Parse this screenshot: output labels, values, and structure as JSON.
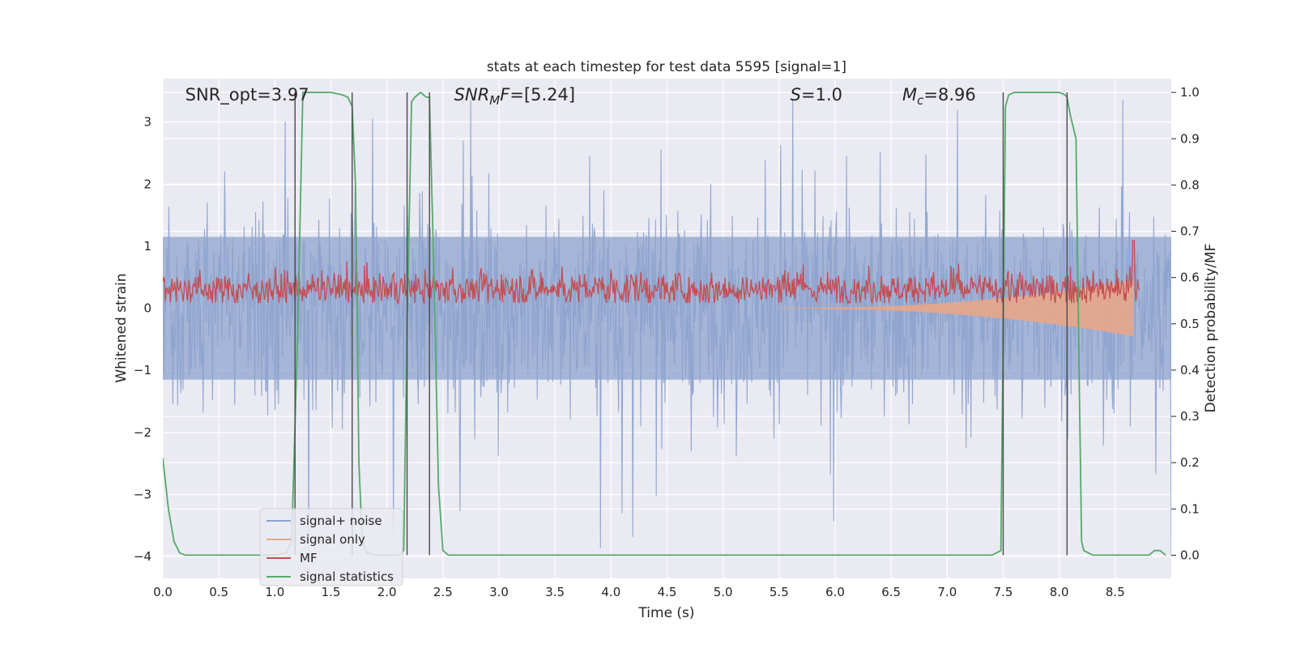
{
  "chart_data": {
    "type": "line",
    "title": "stats at each timestep for test data 5595 [signal=1]",
    "xlabel": "Time (s)",
    "ylabel": "Whitened strain",
    "ylabel_right": "Detection probability/MF",
    "xlim": [
      0,
      9.0
    ],
    "ylim": [
      -4.35,
      3.7
    ],
    "ylim_right": [
      -0.05,
      1.03
    ],
    "x_ticks": [
      0.0,
      0.5,
      1.0,
      1.5,
      2.0,
      2.5,
      3.0,
      3.5,
      4.0,
      4.5,
      5.0,
      5.5,
      6.0,
      6.5,
      7.0,
      7.5,
      8.0,
      8.5
    ],
    "x_tick_labels": [
      "0.0",
      "0.5",
      "1.0",
      "1.5",
      "2.0",
      "2.5",
      "3.0",
      "3.5",
      "4.0",
      "4.5",
      "5.0",
      "5.5",
      "6.0",
      "6.5",
      "7.0",
      "7.5",
      "8.0",
      "8.5"
    ],
    "y_ticks": [
      3,
      2,
      1,
      0,
      -1,
      -2,
      -3,
      -4
    ],
    "y_tick_labels": [
      "3",
      "2",
      "1",
      "0",
      "−1",
      "−2",
      "−3",
      "−4"
    ],
    "y_ticks_right": [
      1.0,
      0.9,
      0.8,
      0.7,
      0.6,
      0.5,
      0.4,
      0.3,
      0.2,
      0.1,
      0.0
    ],
    "y_tick_labels_right": [
      "1.0",
      "0.9",
      "0.8",
      "0.7",
      "0.6",
      "0.5",
      "0.4",
      "0.3",
      "0.2",
      "0.1",
      "0.0"
    ],
    "annotations": [
      {
        "id": "snr-opt",
        "text": "SNR_opt=3.97",
        "italic_prefix": "",
        "x": 0.2
      },
      {
        "id": "snr-mf",
        "text": "=[5.24]",
        "italic_prefix": "SNR",
        "sub": "M",
        "italic_suffix": "F",
        "x": 2.6
      },
      {
        "id": "s-value",
        "text": "=1.0",
        "italic_prefix": "S",
        "x": 5.6
      },
      {
        "id": "mc-value",
        "text": "=8.96",
        "italic_prefix": "M",
        "sub": "c",
        "x": 6.6
      }
    ],
    "vertical_lines": [
      1.18,
      1.69,
      2.18,
      2.38,
      7.5,
      8.07
    ],
    "series": [
      {
        "name": "signal+ noise",
        "color": "#8da3cd",
        "axis": "left",
        "kind": "noise-band",
        "typical_half_width": 1.15,
        "peak_range": [
          -4.0,
          3.35
        ]
      },
      {
        "name": "signal only",
        "color": "#e8a68a",
        "axis": "left",
        "kind": "chirp",
        "start": 5.5,
        "end": 8.66,
        "end_amplitude": 0.45
      },
      {
        "name": "MF",
        "color": "#c44e52",
        "axis": "right",
        "kind": "noisy",
        "baseline": 0.575,
        "band": [
          0.55,
          0.605
        ],
        "max_peak": 0.68
      },
      {
        "name": "signal statistics",
        "color": "#55a868",
        "axis": "right",
        "kind": "line",
        "x": [
          0.0,
          0.05,
          0.1,
          0.15,
          0.2,
          0.3,
          0.5,
          0.8,
          1.0,
          1.1,
          1.15,
          1.2,
          1.25,
          1.3,
          1.4,
          1.5,
          1.6,
          1.65,
          1.69,
          1.72,
          1.75,
          1.78,
          1.82,
          1.9,
          2.0,
          2.1,
          2.15,
          2.18,
          2.22,
          2.25,
          2.3,
          2.35,
          2.38,
          2.42,
          2.46,
          2.5,
          2.55,
          2.6,
          3.0,
          4.0,
          5.0,
          6.0,
          7.0,
          7.4,
          7.48,
          7.52,
          7.55,
          7.6,
          7.7,
          7.9,
          8.0,
          8.05,
          8.07,
          8.1,
          8.15,
          8.18,
          8.2,
          8.22,
          8.3,
          8.5,
          8.7,
          8.8,
          8.85,
          8.9,
          8.95
        ],
        "y": [
          0.21,
          0.1,
          0.03,
          0.005,
          0.0,
          0.0,
          0.0,
          0.0,
          0.0,
          0.005,
          0.03,
          0.45,
          1.0,
          1.0,
          1.0,
          1.0,
          0.995,
          0.99,
          0.97,
          0.8,
          0.2,
          0.03,
          0.005,
          0.0,
          0.0,
          0.0,
          0.01,
          0.5,
          0.98,
          0.99,
          1.0,
          0.99,
          0.99,
          0.6,
          0.15,
          0.01,
          0.0,
          0.0,
          0.0,
          0.0,
          0.0,
          0.0,
          0.0,
          0.0,
          0.01,
          0.97,
          0.995,
          1.0,
          1.0,
          1.0,
          1.0,
          0.995,
          0.99,
          0.95,
          0.9,
          0.35,
          0.03,
          0.01,
          0.0,
          0.0,
          0.0,
          0.0,
          0.01,
          0.01,
          0.0
        ]
      }
    ],
    "legend": {
      "placement": "lower-left",
      "entries": [
        {
          "label": "signal+ noise",
          "color": "#8da3cd"
        },
        {
          "label": "signal only",
          "color": "#e8a68a"
        },
        {
          "label": "MF",
          "color": "#c44e52"
        },
        {
          "label": "signal statistics",
          "color": "#55a868"
        }
      ]
    },
    "colors": {
      "plot_background": "#eaeaf2",
      "grid": "#ffffff",
      "vertical_line": "#4a4a4a"
    }
  }
}
